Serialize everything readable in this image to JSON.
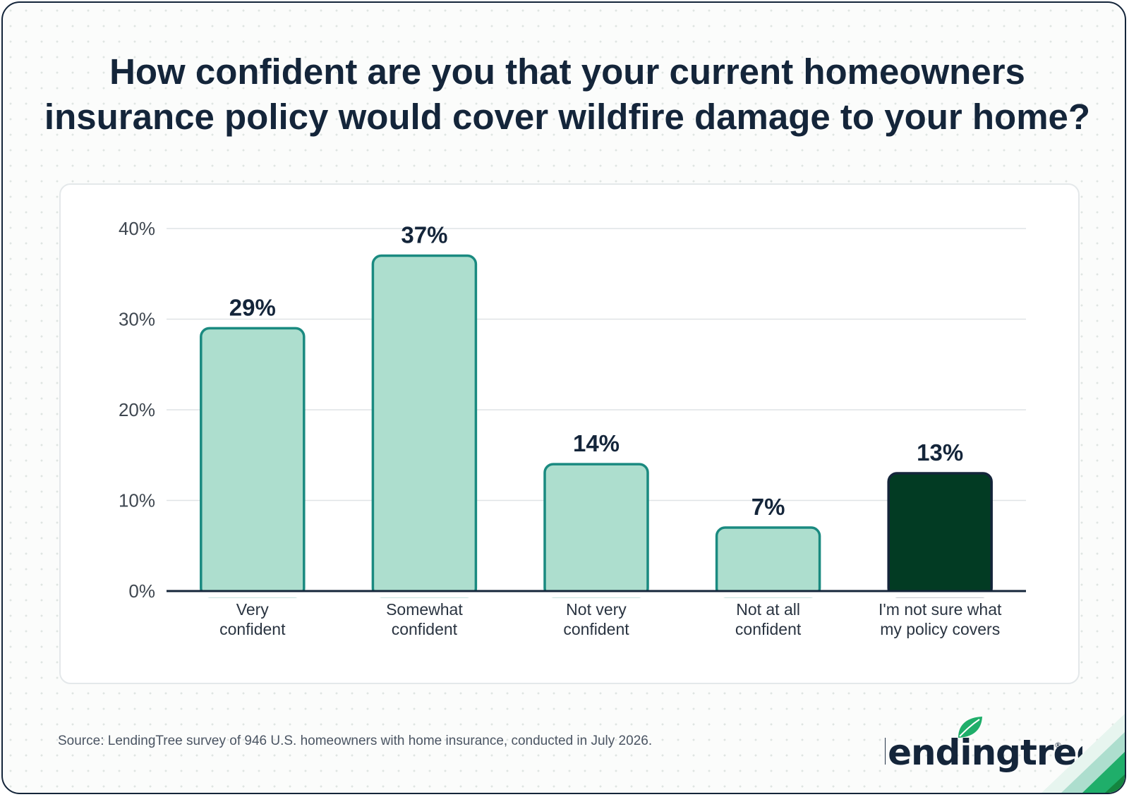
{
  "chart_data": {
    "type": "bar",
    "title": "How confident are you that your current homeowners insurance policy would cover wildfire damage to your home?",
    "categories": [
      [
        "Very",
        "confident"
      ],
      [
        "Somewhat",
        "confident"
      ],
      [
        "Not very",
        "confident"
      ],
      [
        "Not at all",
        "confident"
      ],
      [
        "I'm not sure what",
        "my policy covers"
      ]
    ],
    "values": [
      29,
      37,
      14,
      7,
      13
    ],
    "data_labels": [
      "29%",
      "37%",
      "14%",
      "7%",
      "13%"
    ],
    "highlight_index": 4,
    "ylim": [
      0,
      40
    ],
    "yticks": [
      0,
      10,
      20,
      30,
      40
    ],
    "ytick_labels": [
      "0%",
      "10%",
      "20%",
      "30%",
      "40%"
    ],
    "xlabel": "",
    "ylabel": "",
    "grid": true,
    "colors": {
      "bar_fill": "#addece",
      "bar_stroke": "#1a8a80",
      "highlight_fill": "#023b23",
      "highlight_stroke": "#14253a",
      "label_text": "#14253a",
      "tick_text": "#3f4750",
      "grid": "#dfe3e6"
    }
  },
  "source": "Source: LendingTree survey of 946 U.S. homeowners with home insurance, conducted in July 2026.",
  "logo": {
    "text": "lendingtree",
    "icon": "leaf-icon",
    "mark": "®",
    "leaf_color": "#1fae6a",
    "text_color": "#14253a"
  }
}
